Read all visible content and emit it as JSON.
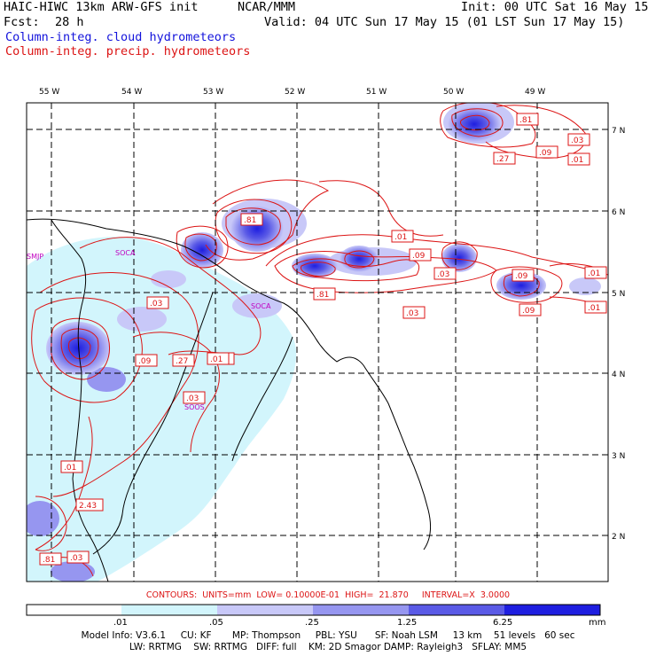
{
  "header": {
    "model": "HAIC-HIWC 13km ARW-GFS init",
    "org": "NCAR/MMM",
    "init": "Init: 00 UTC Sat 16 May 15",
    "fcst_label": "Fcst:",
    "fcst_value": "28 h",
    "valid": "Valid: 04 UTC Sun 17 May 15 (01 LST Sun 17 May 15)",
    "field1": "Column-integ. cloud hydrometeors",
    "field2": "Column-integ. precip. hydrometeors"
  },
  "map": {
    "lon_labels": [
      "55 W",
      "54 W",
      "53 W",
      "52 W",
      "51 W",
      "50 W",
      "49 W"
    ],
    "lat_labels": [
      "7 N",
      "6 N",
      "5 N",
      "4 N",
      "3 N",
      "2 N"
    ],
    "stations": [
      "SMJP",
      "SOCA",
      "SOCA",
      "SOOS"
    ],
    "contour_labels": [
      ".81",
      ".03",
      ".09",
      ".01",
      ".27",
      ".81",
      ".01",
      ".09",
      ".03",
      ".01",
      ".09",
      ".81",
      ".03",
      ".09",
      ".01",
      ".03",
      ".01",
      ".09",
      ".27",
      ".03",
      ".01",
      ".01",
      "2.43",
      ".81",
      ".03",
      ".01"
    ]
  },
  "contours_line": "CONTOURS:  UNITS=mm  LOW= 0.10000E-01  HIGH=  21.870     INTERVAL=X  3.0000",
  "colorbar": {
    "ticks": [
      ".01",
      ".05",
      ".25",
      "1.25",
      "6.25"
    ],
    "units": "mm",
    "colors": [
      "#ffffff",
      "#d2f5fc",
      "#c8c8f8",
      "#9696f0",
      "#5a5ae6",
      "#1e1ee0"
    ]
  },
  "footer": {
    "line1": "Model Info: V3.6.1     CU: KF       MP: Thompson     PBL: YSU      SF: Noah LSM     13 km    51 levels   60 sec",
    "line2": "LW: RRTMG    SW: RRTMG   DIFF: full    KM: 2D Smagor DAMP: Rayleigh3   SFLAY: MM5"
  }
}
